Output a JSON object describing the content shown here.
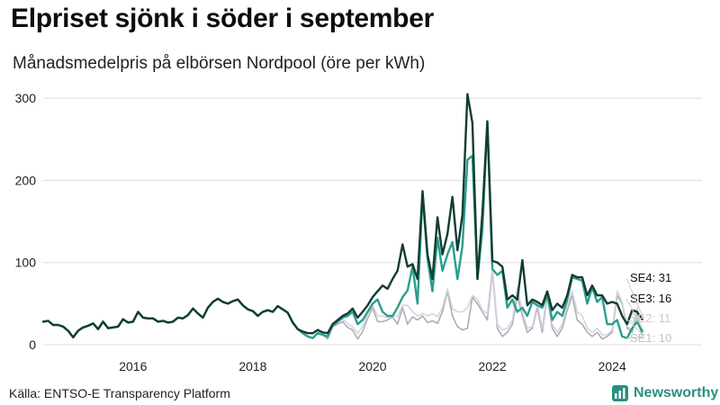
{
  "title": "Elpriset sjönk i söder i september",
  "subtitle": "Månadsmedelpris på elbörsen Nordpool (öre per kWh)",
  "source": "Källa: ENTSO-E Transparency Platform",
  "brand": "Newsworthy",
  "colors": {
    "SE4": "#123d30",
    "SE3": "#2a9d8f",
    "SE2": "#d4d4de",
    "SE1": "#adadb9",
    "grid": "#dddddd",
    "brand": "#2b8f82"
  },
  "chart_data": {
    "type": "line",
    "x_start": "2015-01",
    "x_end": "2024-09",
    "xlim": [
      "2015-01",
      "2026-01"
    ],
    "ylim": [
      0,
      310
    ],
    "yticks": [
      0,
      100,
      200,
      300
    ],
    "xticks": [
      "2016",
      "2018",
      "2020",
      "2022",
      "2024"
    ],
    "grid": true,
    "series": [
      {
        "name": "SE1",
        "label": "SE1: 10",
        "values": [
          28,
          29,
          24,
          24,
          22,
          17,
          9,
          17,
          21,
          23,
          26,
          19,
          28,
          20,
          21,
          22,
          31,
          27,
          28,
          40,
          33,
          32,
          32,
          28,
          29,
          27,
          28,
          33,
          32,
          36,
          44,
          38,
          33,
          45,
          52,
          56,
          52,
          50,
          53,
          55,
          48,
          43,
          41,
          35,
          40,
          42,
          40,
          47,
          43,
          39,
          27,
          19,
          14,
          10,
          8,
          14,
          12,
          7,
          22,
          25,
          28,
          21,
          18,
          7,
          16,
          32,
          45,
          28,
          28,
          30,
          34,
          25,
          45,
          25,
          34,
          30,
          35,
          27,
          29,
          26,
          40,
          65,
          35,
          22,
          18,
          20,
          58,
          50,
          40,
          30,
          90,
          20,
          10,
          15,
          25,
          60,
          35,
          15,
          20,
          45,
          15,
          60,
          20,
          10,
          20,
          42,
          60,
          30,
          25,
          15,
          10,
          15,
          7,
          10,
          15,
          60,
          50,
          20,
          15,
          40,
          10
        ]
      },
      {
        "name": "SE2",
        "label": "SE2: 11",
        "values": [
          28,
          29,
          24,
          24,
          22,
          17,
          9,
          17,
          21,
          23,
          26,
          19,
          28,
          20,
          21,
          22,
          31,
          27,
          28,
          40,
          33,
          32,
          32,
          28,
          29,
          27,
          28,
          33,
          32,
          36,
          44,
          38,
          33,
          45,
          52,
          56,
          52,
          50,
          53,
          55,
          48,
          43,
          41,
          35,
          40,
          42,
          40,
          47,
          43,
          39,
          27,
          19,
          14,
          10,
          8,
          16,
          14,
          9,
          24,
          28,
          31,
          26,
          22,
          14,
          22,
          38,
          48,
          35,
          35,
          33,
          36,
          34,
          48,
          48,
          40,
          35,
          38,
          35,
          38,
          34,
          45,
          68,
          44,
          40,
          40,
          45,
          60,
          55,
          42,
          38,
          95,
          25,
          18,
          20,
          30,
          70,
          40,
          20,
          22,
          50,
          20,
          65,
          25,
          15,
          25,
          48,
          65,
          40,
          35,
          20,
          15,
          20,
          12,
          12,
          18,
          65,
          52,
          22,
          18,
          45,
          11
        ]
      },
      {
        "name": "SE3",
        "label": "SE3: 16",
        "values": [
          28,
          29,
          24,
          24,
          22,
          17,
          9,
          17,
          21,
          23,
          26,
          19,
          28,
          20,
          21,
          22,
          31,
          27,
          28,
          40,
          33,
          32,
          32,
          28,
          29,
          27,
          28,
          33,
          32,
          36,
          44,
          38,
          33,
          45,
          52,
          56,
          52,
          50,
          53,
          55,
          48,
          43,
          41,
          35,
          40,
          42,
          40,
          47,
          43,
          39,
          27,
          19,
          14,
          10,
          8,
          14,
          12,
          10,
          23,
          28,
          33,
          35,
          40,
          25,
          30,
          40,
          50,
          55,
          40,
          35,
          35,
          45,
          58,
          66,
          95,
          50,
          182,
          105,
          65,
          130,
          90,
          110,
          125,
          80,
          120,
          225,
          230,
          80,
          140,
          270,
          92,
          85,
          90,
          45,
          55,
          40,
          45,
          35,
          52,
          48,
          45,
          60,
          30,
          40,
          35,
          55,
          82,
          80,
          78,
          50,
          70,
          52,
          58,
          25,
          25,
          30,
          10,
          8,
          20,
          28,
          16
        ]
      },
      {
        "name": "SE4",
        "label": "SE4: 31",
        "values": [
          28,
          29,
          24,
          24,
          22,
          17,
          9,
          17,
          21,
          23,
          26,
          19,
          28,
          20,
          21,
          22,
          31,
          27,
          28,
          40,
          33,
          32,
          32,
          28,
          29,
          27,
          28,
          33,
          32,
          36,
          44,
          38,
          33,
          45,
          52,
          56,
          52,
          50,
          53,
          55,
          48,
          43,
          41,
          35,
          40,
          42,
          40,
          47,
          43,
          39,
          27,
          19,
          16,
          14,
          14,
          18,
          15,
          14,
          25,
          30,
          35,
          38,
          44,
          33,
          40,
          48,
          58,
          65,
          72,
          68,
          80,
          90,
          122,
          95,
          98,
          80,
          187,
          110,
          80,
          155,
          110,
          135,
          180,
          115,
          158,
          305,
          270,
          80,
          160,
          272,
          102,
          100,
          95,
          55,
          60,
          55,
          103,
          48,
          55,
          52,
          48,
          65,
          42,
          50,
          45,
          60,
          85,
          82,
          82,
          60,
          72,
          60,
          60,
          50,
          52,
          50,
          35,
          25,
          42,
          40,
          31
        ]
      }
    ]
  }
}
